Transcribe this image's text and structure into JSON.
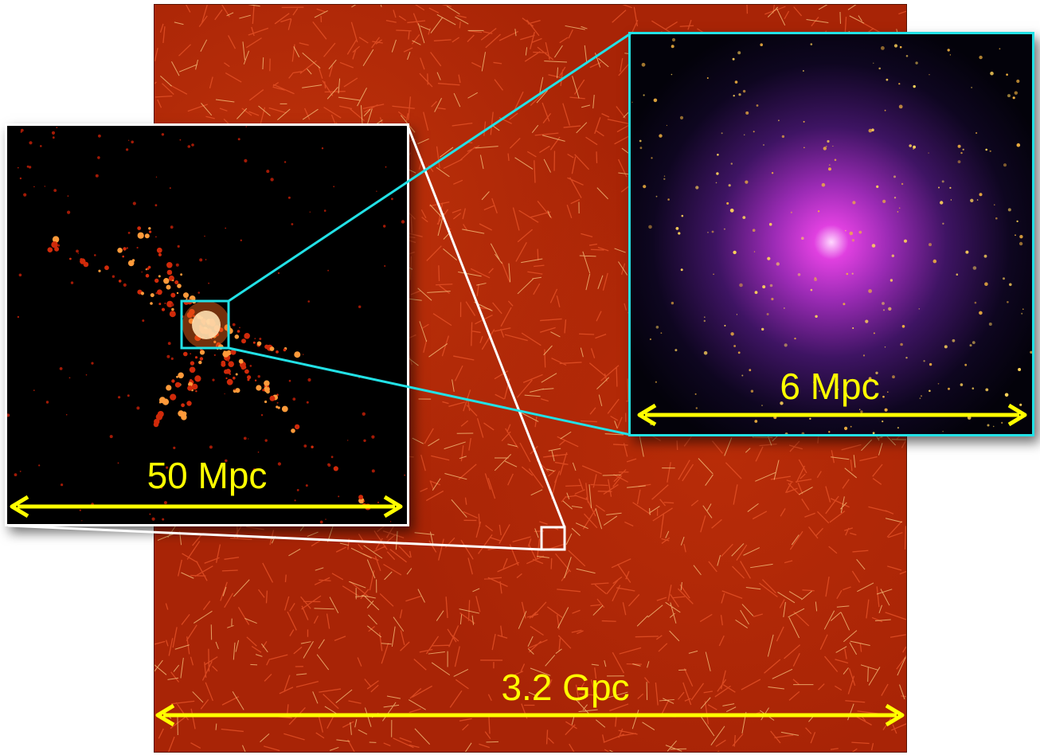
{
  "main_panel": {
    "scale_label": "3.2 Gpc"
  },
  "inset_left": {
    "scale_label": "50 Mpc"
  },
  "inset_right": {
    "scale_label": "6 Mpc"
  },
  "colors": {
    "arrow": "#ffff00",
    "cyan_frame": "#22e1e6",
    "white_frame": "#ffffff",
    "filament_bg": "#a82406"
  }
}
